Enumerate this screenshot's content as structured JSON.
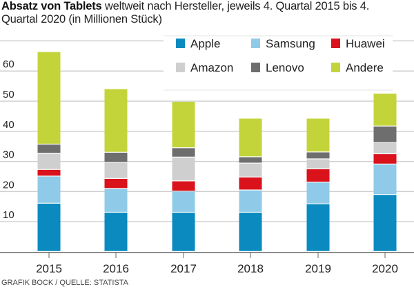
{
  "chart_data": {
    "type": "bar",
    "stacked": true,
    "title_bold": "Absatz von Tablets",
    "title_rest": " weltweit nach Hersteller, jeweils 4. Quartal 2015 bis 4. Quartal 2020 (in Millionen Stück)",
    "categories": [
      "2015",
      "2016",
      "2017",
      "2018",
      "2019",
      "2020"
    ],
    "series": [
      {
        "name": "Apple",
        "color": "#0a8abf",
        "values": [
          16.0,
          13.0,
          13.0,
          13.0,
          15.8,
          18.9
        ]
      },
      {
        "name": "Samsung",
        "color": "#8fcbe8",
        "values": [
          9.0,
          7.9,
          7.0,
          7.4,
          7.2,
          10.1
        ]
      },
      {
        "name": "Huawei",
        "color": "#d9121b",
        "values": [
          2.2,
          3.3,
          3.4,
          4.3,
          4.4,
          3.4
        ]
      },
      {
        "name": "Amazon",
        "color": "#cfcfcf",
        "values": [
          5.4,
          5.3,
          7.9,
          4.6,
          3.3,
          3.7
        ]
      },
      {
        "name": "Lenovo",
        "color": "#6e6e6e",
        "values": [
          3.0,
          3.4,
          3.1,
          2.1,
          2.3,
          5.5
        ]
      },
      {
        "name": "Andere",
        "color": "#c3d43b",
        "values": [
          30.7,
          21.1,
          15.4,
          12.8,
          11.2,
          10.9
        ]
      }
    ],
    "yticks": [
      "10",
      "20",
      "30",
      "40",
      "50",
      "60"
    ],
    "ylim": [
      0,
      70
    ],
    "grid": true,
    "legend_placement": "top-right",
    "source": "GRAFIK BOCK / QUELLE: STATISTA"
  }
}
